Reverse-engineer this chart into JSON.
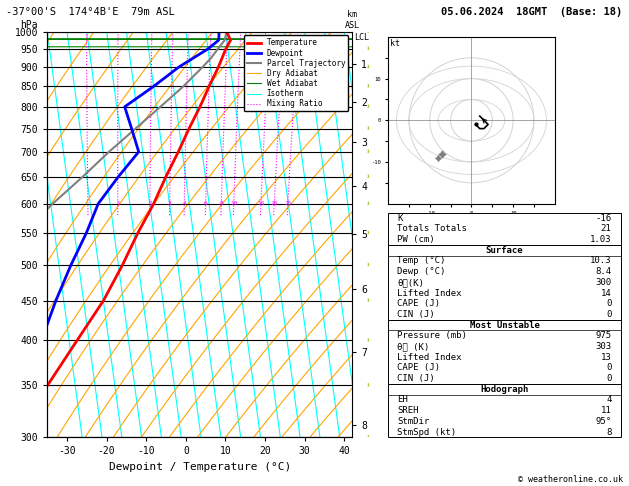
{
  "title_left": "-37°00'S  174°4B'E  79m ASL",
  "title_right": "05.06.2024  18GMT  (Base: 18)",
  "xlabel": "Dewpoint / Temperature (°C)",
  "ylabel_left": "hPa",
  "x_min": -35,
  "x_max": 42,
  "pressure_levels": [
    300,
    350,
    400,
    450,
    500,
    550,
    600,
    650,
    700,
    750,
    800,
    850,
    900,
    950,
    1000
  ],
  "xticks": [
    -30,
    -20,
    -10,
    0,
    10,
    20,
    30,
    40
  ],
  "isotherm_temps": [
    -40,
    -35,
    -30,
    -25,
    -20,
    -15,
    -10,
    -5,
    0,
    5,
    10,
    15,
    20,
    25,
    30,
    35,
    40
  ],
  "skew_factor": 11.5,
  "temp_profile": {
    "pressure": [
      1000,
      975,
      950,
      900,
      850,
      800,
      750,
      700,
      650,
      600,
      550,
      500,
      450,
      400,
      350,
      300
    ],
    "temp": [
      10.3,
      11.0,
      9.5,
      7.0,
      4.0,
      1.0,
      -2.5,
      -6.0,
      -10.0,
      -14.0,
      -19.0,
      -24.0,
      -30.0,
      -38.0,
      -47.0,
      -57.0
    ]
  },
  "dewp_profile": {
    "pressure": [
      1000,
      975,
      950,
      900,
      850,
      800,
      750,
      700,
      650,
      600,
      550,
      500,
      450,
      400,
      350,
      300
    ],
    "dewp": [
      8.4,
      8.0,
      5.0,
      -3.0,
      -10.0,
      -18.0,
      -17.0,
      -16.0,
      -22.0,
      -28.0,
      -32.0,
      -37.0,
      -42.0,
      -47.0,
      -52.0,
      -57.0
    ]
  },
  "parcel_profile": {
    "pressure": [
      1000,
      975,
      950,
      925,
      900,
      850,
      800,
      750,
      700,
      650,
      600,
      550,
      500,
      450,
      400,
      350,
      300
    ],
    "temp": [
      10.3,
      9.5,
      7.5,
      5.5,
      3.0,
      -2.5,
      -9.0,
      -16.0,
      -23.5,
      -31.0,
      -39.5,
      -48.0,
      -57.0,
      -66.0,
      -75.0,
      -85.0,
      -95.0
    ]
  },
  "km_labels": [
    1,
    2,
    3,
    4,
    5,
    6,
    7,
    8
  ],
  "km_pressures": [
    908,
    812,
    720,
    632,
    548,
    466,
    387,
    311
  ],
  "lcl_pressure": 982,
  "mixing_ratios_show": [
    1,
    2,
    3,
    4,
    6,
    8,
    10,
    16,
    20,
    25
  ],
  "legend_entries": [
    {
      "label": "Temperature",
      "color": "red",
      "linestyle": "-",
      "linewidth": 2
    },
    {
      "label": "Dewpoint",
      "color": "blue",
      "linestyle": "-",
      "linewidth": 2
    },
    {
      "label": "Parcel Trajectory",
      "color": "gray",
      "linestyle": "-",
      "linewidth": 1.5
    },
    {
      "label": "Dry Adiabat",
      "color": "orange",
      "linestyle": "-",
      "linewidth": 0.8
    },
    {
      "label": "Wet Adiabat",
      "color": "green",
      "linestyle": "-",
      "linewidth": 0.8
    },
    {
      "label": "Isotherm",
      "color": "cyan",
      "linestyle": "-",
      "linewidth": 0.8
    },
    {
      "label": "Mixing Ratio",
      "color": "magenta",
      "linestyle": ":",
      "linewidth": 0.8
    }
  ],
  "sounding_data": {
    "K": -16,
    "TotalsT": 21,
    "PW": 1.03,
    "surf_temp": 10.3,
    "surf_dewp": 8.4,
    "surf_thetae": 300,
    "surf_li": 14,
    "surf_cape": 0,
    "surf_cin": 0,
    "mu_pressure": 975,
    "mu_thetae": 303,
    "mu_li": 13,
    "mu_cape": 0,
    "mu_cin": 0,
    "EH": 4,
    "SREH": 11,
    "StmDir": "95°",
    "StmSpd": 8
  },
  "copyright": "© weatheronline.co.uk",
  "wind_barb_pressures": [
    300,
    350,
    400,
    450,
    500,
    550,
    600,
    650,
    700,
    750,
    800,
    850,
    900,
    950,
    1000
  ],
  "wind_barb_color": "yellowgreen",
  "hodo_circles": [
    5,
    10,
    15
  ],
  "hodo_wind_u": [
    1,
    2,
    3,
    4,
    3,
    2
  ],
  "hodo_wind_v": [
    -1,
    -2,
    -2,
    -1,
    0,
    1
  ]
}
